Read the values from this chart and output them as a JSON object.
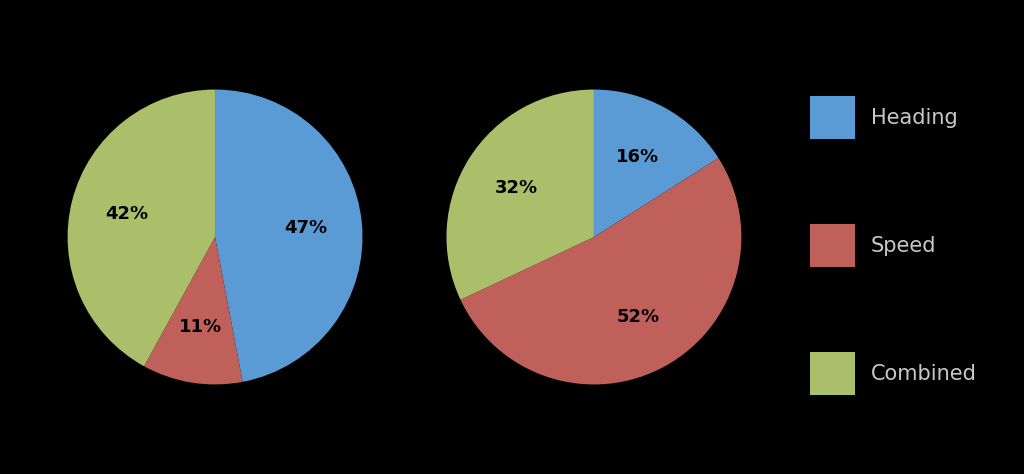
{
  "chart1": {
    "values": [
      47,
      11,
      42
    ],
    "pct_labels": [
      "47%",
      "11%",
      "42%"
    ]
  },
  "chart2": {
    "values": [
      16,
      52,
      32
    ],
    "pct_labels": [
      "16%",
      "52%",
      "32%"
    ]
  },
  "colors": [
    "#5B9BD5",
    "#C0605A",
    "#ABBE6A"
  ],
  "legend_labels": [
    "Heading",
    "Speed",
    "Combined"
  ],
  "background_color": "#000000",
  "text_color": "#000000",
  "label_fontsize": 13,
  "legend_fontsize": 15,
  "legend_text_color": "#C8C8C8"
}
